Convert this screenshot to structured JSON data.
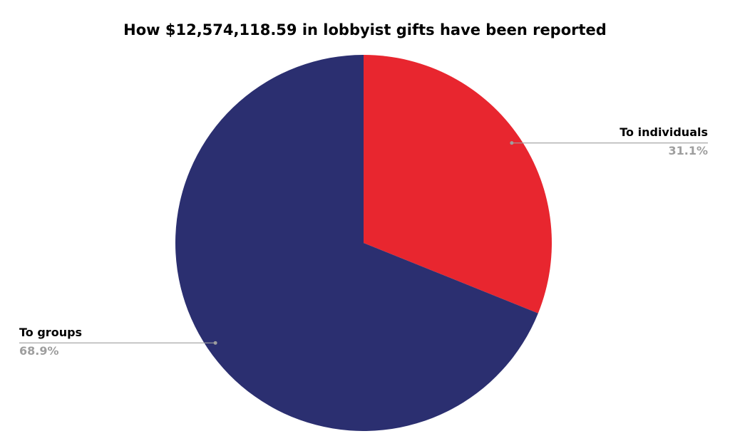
{
  "chart_data": {
    "type": "pie",
    "title": "How $12,574,118.59 in lobbyist gifts have been reported",
    "categories": [
      "To individuals",
      "To groups"
    ],
    "values": [
      31.1,
      68.9
    ],
    "value_labels": [
      "31.1%",
      "68.9%"
    ],
    "colors": [
      "#e8262f",
      "#2b2f70"
    ]
  }
}
